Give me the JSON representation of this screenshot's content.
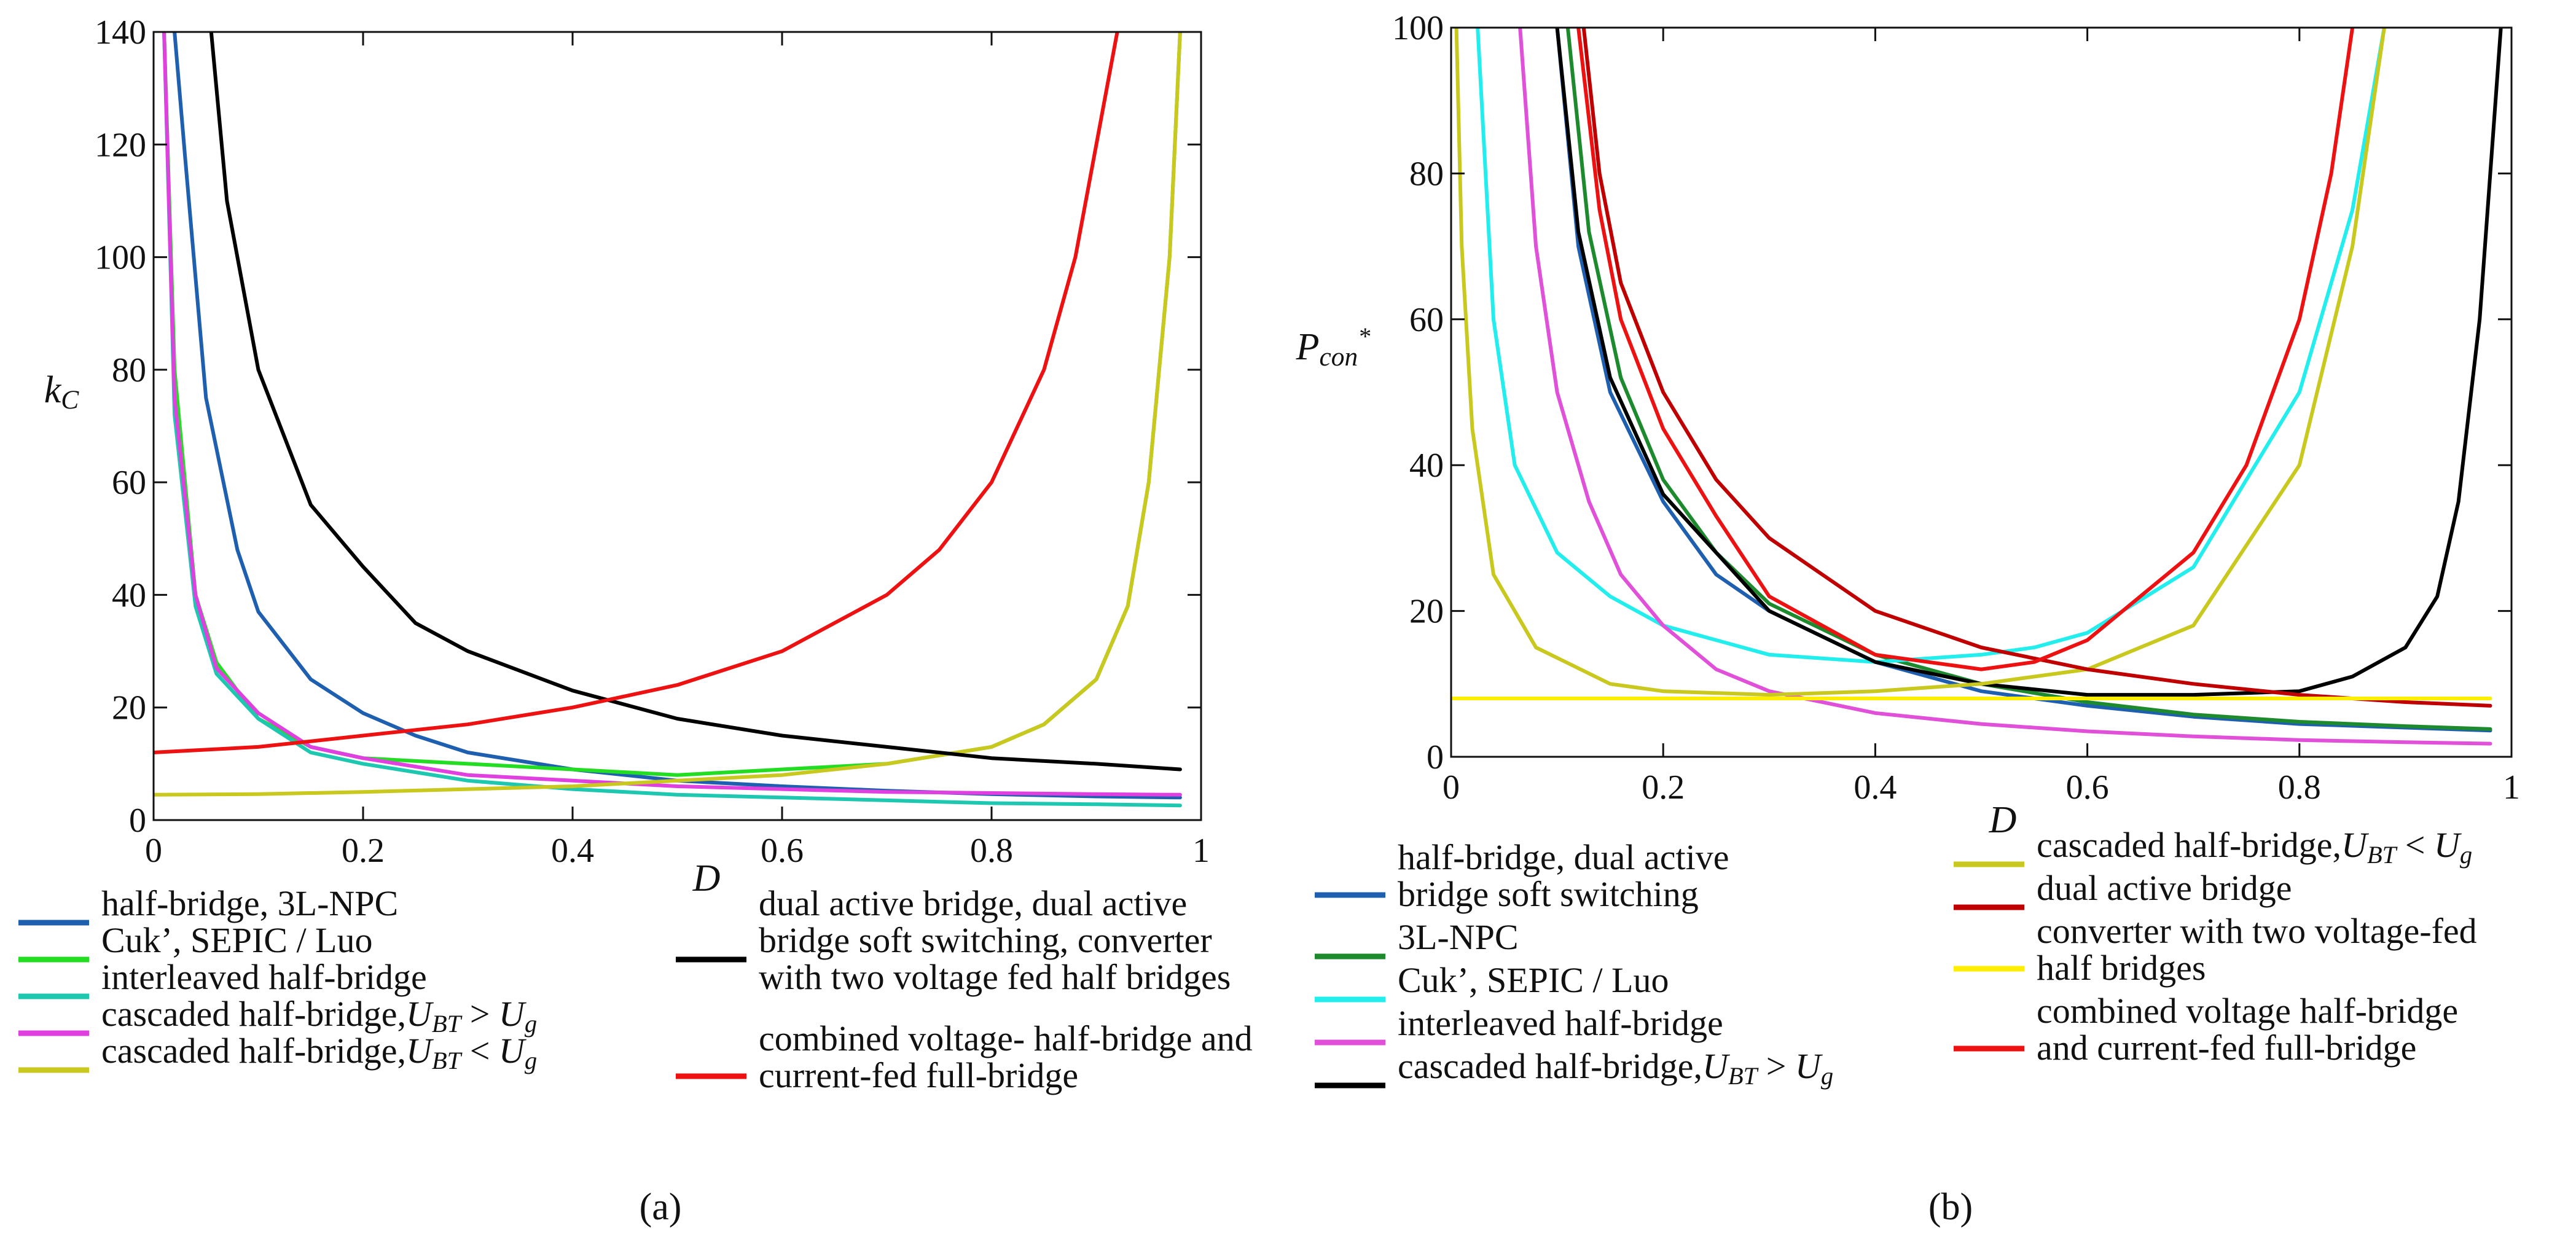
{
  "figure": {
    "panel_a_label": "(a)",
    "panel_b_label": "(b)"
  },
  "chart_data": [
    {
      "type": "line",
      "panel": "(a)",
      "xlabel": "D",
      "ylabel": "kC",
      "xlim": [
        0,
        1
      ],
      "ylim": [
        0,
        140
      ],
      "xticks": [
        "0",
        "0.2",
        "0.4",
        "0.6",
        "0.8",
        "1"
      ],
      "yticks": [
        "0",
        "20",
        "40",
        "60",
        "80",
        "100",
        "120",
        "140"
      ],
      "legend_placement": "bottom",
      "series": [
        {
          "name": "half-bridge, 3L-NPC",
          "color": "#1f5fb0",
          "x": [
            0.02,
            0.03,
            0.05,
            0.08,
            0.1,
            0.15,
            0.2,
            0.25,
            0.3,
            0.4,
            0.5,
            0.6,
            0.7,
            0.8,
            0.9,
            0.98
          ],
          "y": [
            140,
            118,
            75,
            48,
            37,
            25,
            19,
            15,
            12,
            9,
            7,
            6,
            5.2,
            4.6,
            4.2,
            4.0
          ]
        },
        {
          "name": "Cuk’, SEPIC / Luo",
          "color": "#22dd22",
          "x": [
            0.01,
            0.02,
            0.04,
            0.06,
            0.1,
            0.15,
            0.2,
            0.3,
            0.4,
            0.5,
            0.6,
            0.7,
            0.8,
            0.85,
            0.9,
            0.93,
            0.95,
            0.97,
            0.98
          ],
          "y": [
            140,
            80,
            40,
            28,
            18,
            13,
            11,
            10,
            9,
            8,
            9,
            10,
            13,
            17,
            25,
            38,
            60,
            100,
            140
          ]
        },
        {
          "name": "interleaved half-bridge",
          "color": "#1ec8b0",
          "x": [
            0.01,
            0.02,
            0.04,
            0.06,
            0.1,
            0.15,
            0.2,
            0.3,
            0.4,
            0.5,
            0.6,
            0.7,
            0.8,
            0.9,
            0.98
          ],
          "y": [
            140,
            72,
            38,
            26,
            18,
            12,
            10,
            7,
            5.5,
            4.5,
            4,
            3.5,
            3,
            2.8,
            2.6
          ]
        },
        {
          "name": "cascaded half-bridge,UBT > Ug",
          "color": "#e040e0",
          "x": [
            0.01,
            0.02,
            0.04,
            0.06,
            0.1,
            0.15,
            0.2,
            0.3,
            0.4,
            0.5,
            0.6,
            0.7,
            0.8,
            0.9,
            0.98
          ],
          "y": [
            140,
            75,
            40,
            27,
            19,
            13,
            11,
            8,
            7,
            6,
            5.5,
            5,
            4.8,
            4.6,
            4.5
          ]
        },
        {
          "name": "cascaded half-bridge,UBT < Ug",
          "color": "#c8c81e",
          "x": [
            0,
            0.1,
            0.2,
            0.3,
            0.4,
            0.5,
            0.6,
            0.7,
            0.8,
            0.85,
            0.9,
            0.93,
            0.95,
            0.97,
            0.98
          ],
          "y": [
            4.5,
            4.6,
            5,
            5.5,
            6,
            7,
            8,
            10,
            13,
            17,
            25,
            38,
            60,
            100,
            140
          ]
        },
        {
          "name": "dual active bridge, dual active bridge soft switching, converter with two voltage fed half bridges",
          "color": "#000000",
          "x": [
            0.055,
            0.07,
            0.1,
            0.15,
            0.2,
            0.25,
            0.3,
            0.4,
            0.5,
            0.6,
            0.7,
            0.8,
            0.9,
            0.98
          ],
          "y": [
            140,
            110,
            80,
            56,
            45,
            35,
            30,
            23,
            18,
            15,
            13,
            11,
            10,
            9
          ]
        },
        {
          "name": "combined voltage- half-bridge and current-fed full-bridge",
          "color": "#ee1111",
          "x": [
            0,
            0.1,
            0.2,
            0.3,
            0.4,
            0.5,
            0.6,
            0.7,
            0.75,
            0.8,
            0.85,
            0.88,
            0.9,
            0.92
          ],
          "y": [
            12,
            13,
            15,
            17,
            20,
            24,
            30,
            40,
            48,
            60,
            80,
            100,
            120,
            140
          ]
        }
      ]
    },
    {
      "type": "line",
      "panel": "(b)",
      "xlabel": "D",
      "ylabel": "Pcon*",
      "xlim": [
        0,
        1
      ],
      "ylim": [
        0,
        100
      ],
      "xticks": [
        "0",
        "0.2",
        "0.4",
        "0.6",
        "0.8",
        "1"
      ],
      "yticks": [
        "0",
        "20",
        "40",
        "60",
        "80",
        "100"
      ],
      "legend_placement": "bottom",
      "series": [
        {
          "name": "half-bridge, dual active bridge soft switching",
          "color": "#1f5fb0",
          "x": [
            0.1,
            0.12,
            0.15,
            0.2,
            0.25,
            0.3,
            0.4,
            0.5,
            0.6,
            0.7,
            0.8,
            0.9,
            0.98
          ],
          "y": [
            100,
            70,
            50,
            35,
            25,
            20,
            13,
            9,
            7,
            5.5,
            4.5,
            4,
            3.6
          ]
        },
        {
          "name": "3L-NPC",
          "color": "#1e8a2e",
          "x": [
            0.11,
            0.13,
            0.16,
            0.2,
            0.25,
            0.3,
            0.4,
            0.5,
            0.6,
            0.7,
            0.8,
            0.9,
            0.98
          ],
          "y": [
            100,
            72,
            52,
            38,
            28,
            21,
            14,
            10,
            7.5,
            5.8,
            4.8,
            4.2,
            3.8
          ]
        },
        {
          "name": "Cuk’, SEPIC / Luo",
          "color": "#22eeee",
          "x": [
            0.025,
            0.04,
            0.06,
            0.1,
            0.15,
            0.2,
            0.3,
            0.4,
            0.5,
            0.55,
            0.6,
            0.7,
            0.8,
            0.85,
            0.88
          ],
          "y": [
            100,
            60,
            40,
            28,
            22,
            18,
            14,
            13,
            14,
            15,
            17,
            26,
            50,
            75,
            100
          ]
        },
        {
          "name": "interleaved half-bridge",
          "color": "#e050d8",
          "x": [
            0.065,
            0.08,
            0.1,
            0.13,
            0.16,
            0.2,
            0.25,
            0.3,
            0.4,
            0.5,
            0.6,
            0.7,
            0.8,
            0.9,
            0.98
          ],
          "y": [
            100,
            70,
            50,
            35,
            25,
            18,
            12,
            9,
            6,
            4.5,
            3.5,
            2.8,
            2.3,
            2,
            1.8
          ]
        },
        {
          "name": "cascaded half-bridge,UBT > Ug",
          "color": "#000000",
          "x": [
            0.1,
            0.12,
            0.15,
            0.2,
            0.3,
            0.4,
            0.5,
            0.6,
            0.7,
            0.8,
            0.85,
            0.9,
            0.93,
            0.95,
            0.97,
            0.99
          ],
          "y": [
            100,
            72,
            52,
            36,
            20,
            13,
            10,
            8.5,
            8.5,
            9,
            11,
            15,
            22,
            35,
            60,
            100
          ]
        },
        {
          "name": "cascaded half-bridge,UBT < Ug",
          "color": "#c8c81e",
          "x": [
            0.005,
            0.01,
            0.02,
            0.04,
            0.08,
            0.15,
            0.2,
            0.3,
            0.4,
            0.5,
            0.6,
            0.7,
            0.8,
            0.85,
            0.88
          ],
          "y": [
            100,
            70,
            45,
            25,
            15,
            10,
            9,
            8.5,
            9,
            10,
            12,
            18,
            40,
            70,
            100
          ]
        },
        {
          "name": "dual active bridge",
          "color": "#c00000",
          "x": [
            0.125,
            0.14,
            0.16,
            0.2,
            0.25,
            0.3,
            0.4,
            0.5,
            0.6,
            0.7,
            0.8,
            0.9,
            0.98
          ],
          "y": [
            100,
            80,
            65,
            50,
            38,
            30,
            20,
            15,
            12,
            10,
            8.5,
            7.5,
            7
          ]
        },
        {
          "name": "converter with two voltage-fed half bridges",
          "color": "#ffee00",
          "x": [
            0,
            0.98
          ],
          "y": [
            8,
            8
          ]
        },
        {
          "name": "combined voltage half-bridge and current-fed full-bridge",
          "color": "#ee1111",
          "x": [
            0.12,
            0.14,
            0.16,
            0.2,
            0.25,
            0.3,
            0.4,
            0.5,
            0.55,
            0.6,
            0.7,
            0.75,
            0.8,
            0.83,
            0.85
          ],
          "y": [
            100,
            75,
            60,
            45,
            33,
            22,
            14,
            12,
            13,
            16,
            28,
            40,
            60,
            80,
            100
          ]
        }
      ]
    }
  ]
}
